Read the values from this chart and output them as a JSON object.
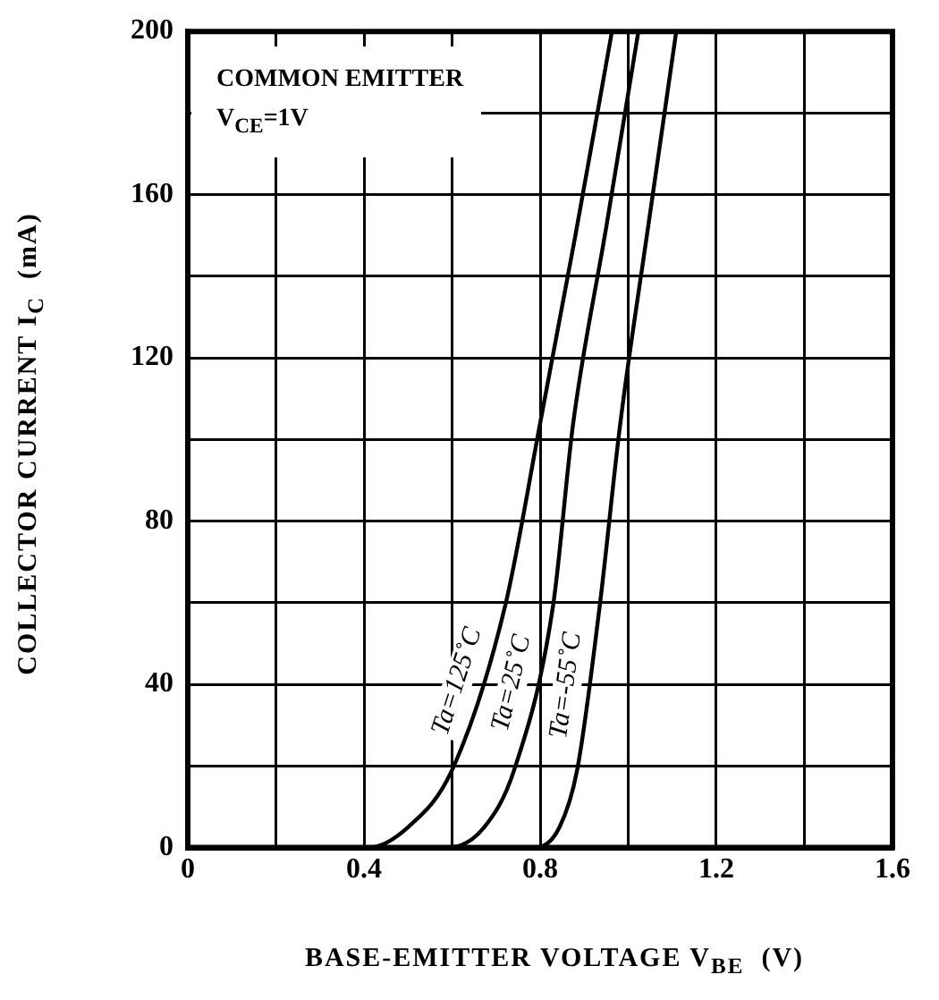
{
  "chart_data": {
    "type": "line",
    "xlabel": "BASE-EMITTER VOLTAGE V$_{BE}$  (V)",
    "ylabel": "COLLECTOR CURRENT I$_{C}$  (mA)",
    "annotations": [
      "COMMON EMITTER",
      "V$_{CE}$=1V"
    ],
    "series": [
      {
        "name": "Ta=125˚C",
        "color": "#000000",
        "x": [
          0,
          0.41,
          0.5,
          0.6,
          0.72,
          0.8,
          0.88,
          0.963
        ],
        "values": [
          0,
          0,
          5,
          19,
          59,
          104,
          150,
          200
        ]
      },
      {
        "name": "Ta=25˚C",
        "color": "#000000",
        "x": [
          0,
          0.59,
          0.673,
          0.741,
          0.829,
          0.875,
          0.95,
          1.023
        ],
        "values": [
          0,
          0,
          5,
          19,
          59,
          104,
          152,
          200
        ]
      },
      {
        "name": "Ta=-55˚C",
        "color": "#000000",
        "x": [
          0,
          0.79,
          0.844,
          0.884,
          0.935,
          0.982,
          1.045,
          1.109
        ],
        "values": [
          0,
          0,
          5,
          19,
          59,
          104,
          152,
          200
        ]
      }
    ],
    "xlim": [
      0,
      1.6
    ],
    "ylim": [
      0,
      200
    ],
    "xticks": [
      0,
      {
        "value": 0.2,
        "label": null
      },
      0.4,
      {
        "value": 0.6,
        "label": null
      },
      0.8,
      {
        "value": 1.0,
        "label": null
      },
      1.2,
      {
        "value": 1.4,
        "label": null
      },
      1.6
    ],
    "yticks": [
      0,
      {
        "value": 20,
        "label": null
      },
      40,
      {
        "value": 60,
        "label": null
      },
      80,
      {
        "value": 100,
        "label": null
      },
      120,
      {
        "value": 140,
        "label": null
      },
      160,
      {
        "value": 180,
        "label": null
      },
      200
    ],
    "grid": true,
    "legend": false,
    "marker": "none",
    "line_style": "solid"
  }
}
